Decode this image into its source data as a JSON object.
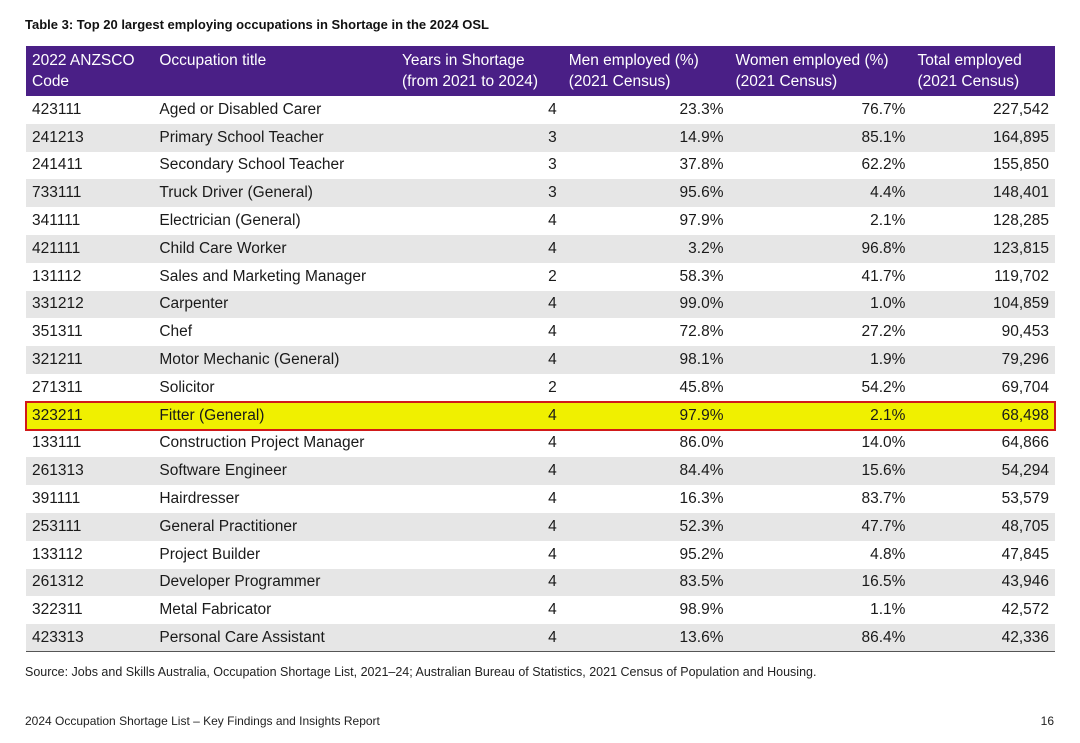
{
  "caption": "Table 3: Top 20 largest employing occupations in Shortage in the 2024 OSL",
  "columns": {
    "code": "2022 ANZSCO Code",
    "title": "Occupation title",
    "years": "Years in Shortage (from 2021 to 2024)",
    "men": "Men employed (%) (2021 Census)",
    "women": "Women employed (%) (2021 Census)",
    "total": "Total employed (2021 Census)"
  },
  "rows": [
    {
      "code": "423111",
      "title": "Aged or Disabled Carer",
      "years": "4",
      "men": "23.3%",
      "women": "76.7%",
      "total": "227,542"
    },
    {
      "code": "241213",
      "title": "Primary School Teacher",
      "years": "3",
      "men": "14.9%",
      "women": "85.1%",
      "total": "164,895"
    },
    {
      "code": "241411",
      "title": "Secondary School Teacher",
      "years": "3",
      "men": "37.8%",
      "women": "62.2%",
      "total": "155,850"
    },
    {
      "code": "733111",
      "title": "Truck Driver (General)",
      "years": "3",
      "men": "95.6%",
      "women": "4.4%",
      "total": "148,401"
    },
    {
      "code": "341111",
      "title": "Electrician (General)",
      "years": "4",
      "men": "97.9%",
      "women": "2.1%",
      "total": "128,285"
    },
    {
      "code": "421111",
      "title": "Child Care Worker",
      "years": "4",
      "men": "3.2%",
      "women": "96.8%",
      "total": "123,815"
    },
    {
      "code": "131112",
      "title": "Sales and Marketing Manager",
      "years": "2",
      "men": "58.3%",
      "women": "41.7%",
      "total": "119,702"
    },
    {
      "code": "331212",
      "title": "Carpenter",
      "years": "4",
      "men": "99.0%",
      "women": "1.0%",
      "total": "104,859"
    },
    {
      "code": "351311",
      "title": "Chef",
      "years": "4",
      "men": "72.8%",
      "women": "27.2%",
      "total": "90,453"
    },
    {
      "code": "321211",
      "title": "Motor Mechanic (General)",
      "years": "4",
      "men": "98.1%",
      "women": "1.9%",
      "total": "79,296"
    },
    {
      "code": "271311",
      "title": "Solicitor",
      "years": "2",
      "men": "45.8%",
      "women": "54.2%",
      "total": "69,704"
    },
    {
      "code": "323211",
      "title": "Fitter (General)",
      "years": "4",
      "men": "97.9%",
      "women": "2.1%",
      "total": "68,498",
      "highlight": true
    },
    {
      "code": "133111",
      "title": "Construction Project Manager",
      "years": "4",
      "men": "86.0%",
      "women": "14.0%",
      "total": "64,866"
    },
    {
      "code": "261313",
      "title": "Software Engineer",
      "years": "4",
      "men": "84.4%",
      "women": "15.6%",
      "total": "54,294"
    },
    {
      "code": "391111",
      "title": "Hairdresser",
      "years": "4",
      "men": "16.3%",
      "women": "83.7%",
      "total": "53,579"
    },
    {
      "code": "253111",
      "title": "General Practitioner",
      "years": "4",
      "men": "52.3%",
      "women": "47.7%",
      "total": "48,705"
    },
    {
      "code": "133112",
      "title": "Project Builder",
      "years": "4",
      "men": "95.2%",
      "women": "4.8%",
      "total": "47,845"
    },
    {
      "code": "261312",
      "title": "Developer Programmer",
      "years": "4",
      "men": "83.5%",
      "women": "16.5%",
      "total": "43,946"
    },
    {
      "code": "322311",
      "title": "Metal Fabricator",
      "years": "4",
      "men": "98.9%",
      "women": "1.1%",
      "total": "42,572"
    },
    {
      "code": "423313",
      "title": "Personal Care Assistant",
      "years": "4",
      "men": "13.6%",
      "women": "86.4%",
      "total": "42,336"
    }
  ],
  "source": "Source: Jobs and Skills Australia, Occupation Shortage List, 2021–24; Australian Bureau of Statistics, 2021 Census of Population and Housing.",
  "footer": "2024 Occupation Shortage List – Key Findings and Insights Report",
  "page_number": "16",
  "colors": {
    "header_bg": "#4a1f86",
    "stripe_bg": "#e6e6e6",
    "highlight_bg": "#f0f000",
    "highlight_border": "#d11a1a"
  }
}
